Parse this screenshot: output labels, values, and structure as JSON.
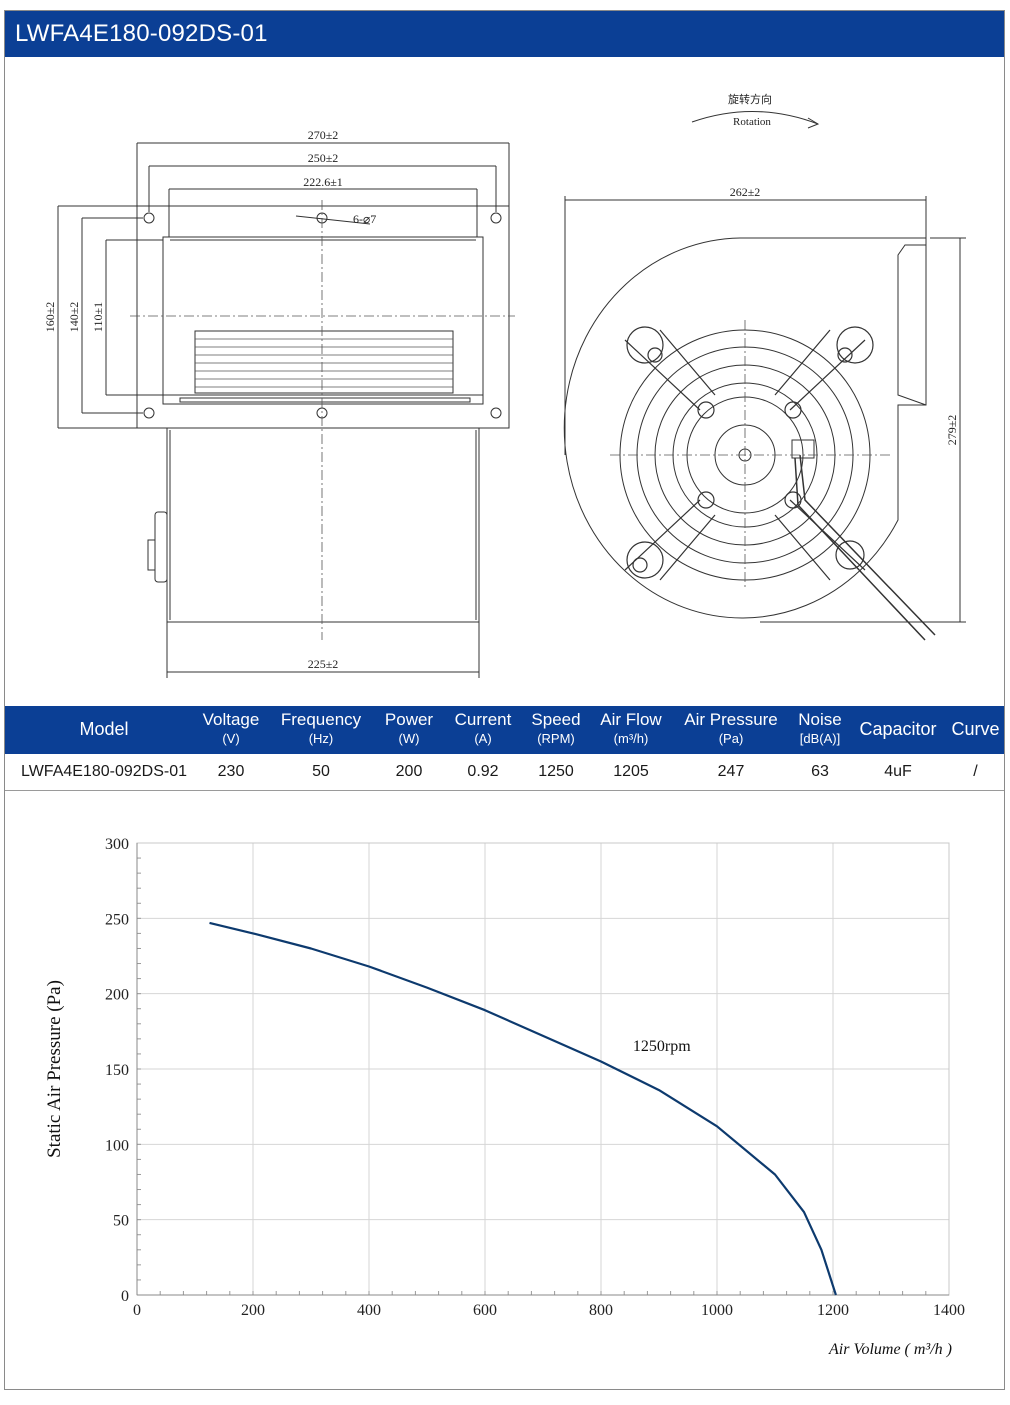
{
  "header": {
    "title": "LWFA4E180-092DS-01"
  },
  "drawing": {
    "dim_270": "270±2",
    "dim_250": "250±2",
    "dim_222": "222.6±1",
    "dim_holes": "6-⌀7",
    "dim_160": "160±2",
    "dim_140": "140±2",
    "dim_110": "110±1",
    "dim_225": "225±2",
    "dim_262": "262±2",
    "dim_279": "279±2",
    "rotation_cn": "旋转方向",
    "rotation_en": "Rotation"
  },
  "spec_table": {
    "headers": [
      {
        "main": "Model",
        "unit": ""
      },
      {
        "main": "Voltage",
        "unit": "(V)"
      },
      {
        "main": "Frequency",
        "unit": "(Hz)"
      },
      {
        "main": "Power",
        "unit": "(W)"
      },
      {
        "main": "Current",
        "unit": "(A)"
      },
      {
        "main": "Speed",
        "unit": "(RPM)"
      },
      {
        "main": "Air Flow",
        "unit": "(m³/h)"
      },
      {
        "main": "Air Pressure",
        "unit": "(Pa)"
      },
      {
        "main": "Noise",
        "unit": "[dB(A)]"
      },
      {
        "main": "Capacitor",
        "unit": ""
      },
      {
        "main": "Curve",
        "unit": ""
      }
    ],
    "row": [
      "LWFA4E180-092DS-01",
      "230",
      "50",
      "200",
      "0.92",
      "1250",
      "1205",
      "247",
      "63",
      "4uF",
      "/"
    ]
  },
  "chart_data": {
    "type": "line",
    "title": "",
    "xlabel": "Air Volume ( m³/h )",
    "ylabel": "Static Air Pressure  (Pa)",
    "xlim": [
      0,
      1400
    ],
    "ylim": [
      0,
      300
    ],
    "x_ticks": [
      "0",
      "200",
      "400",
      "600",
      "800",
      "1000",
      "1200",
      "1400"
    ],
    "y_ticks": [
      "0",
      "50",
      "100",
      "150",
      "200",
      "250",
      "300"
    ],
    "grid": true,
    "line_color": "#0d3a6e",
    "series": [
      {
        "name": "1250rpm",
        "x": [
          125,
          200,
          300,
          400,
          500,
          600,
          700,
          800,
          900,
          1000,
          1100,
          1150,
          1180,
          1205
        ],
        "y": [
          247,
          240,
          230,
          218,
          204,
          189,
          172,
          155,
          136,
          112,
          80,
          55,
          30,
          0
        ]
      }
    ],
    "annotations": [
      {
        "text": "1250rpm",
        "x": 855,
        "y": 162
      }
    ]
  }
}
